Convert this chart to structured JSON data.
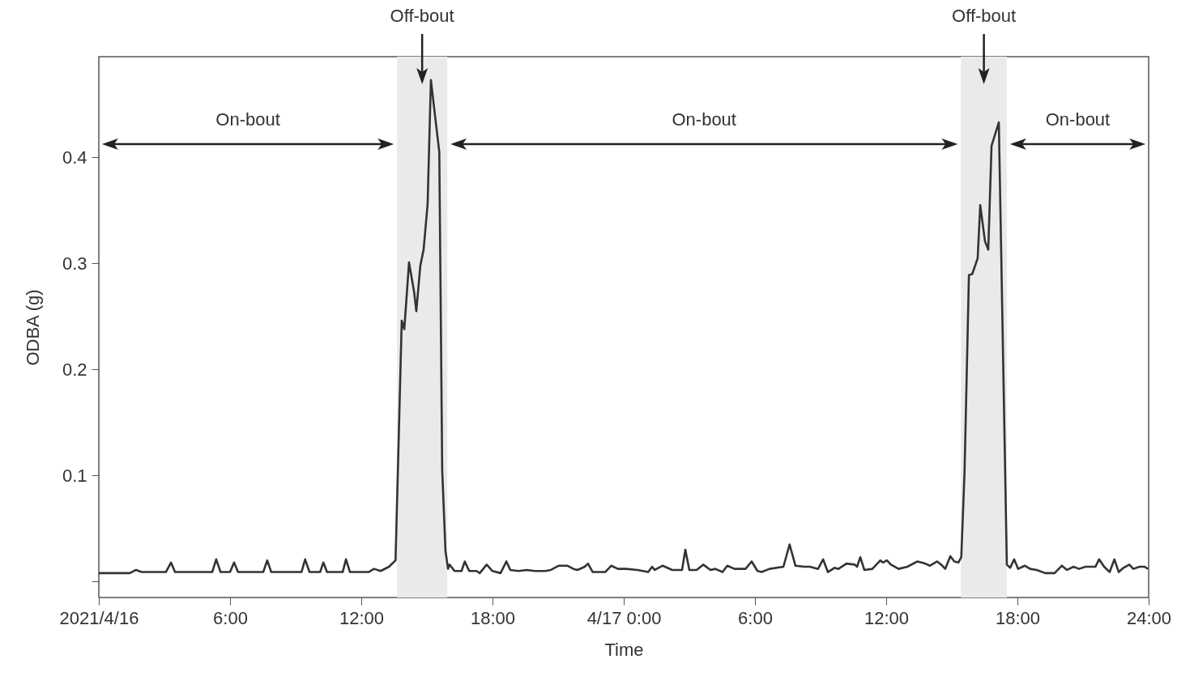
{
  "chart_data": {
    "type": "line",
    "xlabel": "Time",
    "ylabel": "ODBA (g)",
    "x": [
      "2021-04-16T00:00",
      "2021-04-16T01:25",
      "2021-04-16T01:42",
      "2021-04-16T01:58",
      "2021-04-16T03:04",
      "2021-04-16T03:18",
      "2021-04-16T03:29",
      "2021-04-16T05:11",
      "2021-04-16T05:22",
      "2021-04-16T05:34",
      "2021-04-16T06:00",
      "2021-04-16T06:11",
      "2021-04-16T06:22",
      "2021-04-16T07:31",
      "2021-04-16T07:42",
      "2021-04-16T07:53",
      "2021-04-16T09:16",
      "2021-04-16T09:26",
      "2021-04-16T09:38",
      "2021-04-16T10:07",
      "2021-04-16T10:16",
      "2021-04-16T10:26",
      "2021-04-16T11:09",
      "2021-04-16T11:18",
      "2021-04-16T11:29",
      "2021-04-16T12:20",
      "2021-04-16T12:35",
      "2021-04-16T12:53",
      "2021-04-16T13:16",
      "2021-04-16T13:34",
      "2021-04-16T13:51",
      "2021-04-16T13:58",
      "2021-04-16T14:11",
      "2021-04-16T14:25",
      "2021-04-16T14:31",
      "2021-04-16T14:42",
      "2021-04-16T14:51",
      "2021-04-16T15:02",
      "2021-04-16T15:11",
      "2021-04-16T15:34",
      "2021-04-16T15:42",
      "2021-04-16T15:51",
      "2021-04-16T15:58",
      "2021-04-16T16:02",
      "2021-04-16T16:16",
      "2021-04-16T16:35",
      "2021-04-16T16:44",
      "2021-04-16T16:56",
      "2021-04-16T17:16",
      "2021-04-16T17:25",
      "2021-04-16T17:44",
      "2021-04-16T18:00",
      "2021-04-16T18:22",
      "2021-04-16T18:38",
      "2021-04-16T18:49",
      "2021-04-16T19:11",
      "2021-04-16T19:34",
      "2021-04-16T19:56",
      "2021-04-16T20:25",
      "2021-04-16T20:40",
      "2021-04-16T21:02",
      "2021-04-16T21:25",
      "2021-04-16T21:42",
      "2021-04-16T21:53",
      "2021-04-16T22:13",
      "2021-04-16T22:22",
      "2021-04-16T22:35",
      "2021-04-16T23:09",
      "2021-04-16T23:26",
      "2021-04-16T23:44",
      "2021-04-17T00:07",
      "2021-04-17T00:38",
      "2021-04-17T01:07",
      "2021-04-17T01:18",
      "2021-04-17T01:25",
      "2021-04-17T01:47",
      "2021-04-17T02:13",
      "2021-04-17T02:40",
      "2021-04-17T02:49",
      "2021-04-17T03:00",
      "2021-04-17T03:20",
      "2021-04-17T03:38",
      "2021-04-17T03:58",
      "2021-04-17T04:11",
      "2021-04-17T04:31",
      "2021-04-17T04:44",
      "2021-04-17T05:04",
      "2021-04-17T05:34",
      "2021-04-17T05:51",
      "2021-04-17T06:07",
      "2021-04-17T06:18",
      "2021-04-17T06:40",
      "2021-04-17T07:18",
      "2021-04-17T07:35",
      "2021-04-17T07:51",
      "2021-04-17T08:16",
      "2021-04-17T08:31",
      "2021-04-17T08:53",
      "2021-04-17T09:07",
      "2021-04-17T09:20",
      "2021-04-17T09:38",
      "2021-04-17T09:49",
      "2021-04-17T10:11",
      "2021-04-17T10:34",
      "2021-04-17T10:40",
      "2021-04-17T10:49",
      "2021-04-17T11:00",
      "2021-04-17T11:22",
      "2021-04-17T11:44",
      "2021-04-17T11:51",
      "2021-04-17T12:02",
      "2021-04-17T12:13",
      "2021-04-17T12:34",
      "2021-04-17T12:58",
      "2021-04-17T13:26",
      "2021-04-17T13:47",
      "2021-04-17T14:00",
      "2021-04-17T14:20",
      "2021-04-17T14:31",
      "2021-04-17T14:42",
      "2021-04-17T14:56",
      "2021-04-17T15:07",
      "2021-04-17T15:18",
      "2021-04-17T15:26",
      "2021-04-17T15:35",
      "2021-04-17T15:47",
      "2021-04-17T15:56",
      "2021-04-17T16:11",
      "2021-04-17T16:18",
      "2021-04-17T16:31",
      "2021-04-17T16:40",
      "2021-04-17T16:49",
      "2021-04-17T17:09",
      "2021-04-17T17:31",
      "2021-04-17T17:40",
      "2021-04-17T17:51",
      "2021-04-17T18:02",
      "2021-04-17T18:20",
      "2021-04-17T18:35",
      "2021-04-17T18:53",
      "2021-04-17T19:16",
      "2021-04-17T19:42",
      "2021-04-17T20:02",
      "2021-04-17T20:16",
      "2021-04-17T20:34",
      "2021-04-17T20:49",
      "2021-04-17T21:07",
      "2021-04-17T21:34",
      "2021-04-17T21:44",
      "2021-04-17T21:58",
      "2021-04-17T22:13",
      "2021-04-17T22:26",
      "2021-04-17T22:38",
      "2021-04-17T22:51",
      "2021-04-17T23:07",
      "2021-04-17T23:18",
      "2021-04-17T23:35",
      "2021-04-17T23:49",
      "2021-04-17T23:58"
    ],
    "series": [
      {
        "color": "#333333",
        "values": [
          0.008,
          0.008,
          0.011,
          0.009,
          0.009,
          0.018,
          0.009,
          0.009,
          0.021,
          0.009,
          0.009,
          0.018,
          0.009,
          0.009,
          0.02,
          0.009,
          0.009,
          0.021,
          0.009,
          0.009,
          0.018,
          0.009,
          0.009,
          0.021,
          0.009,
          0.009,
          0.012,
          0.01,
          0.014,
          0.02,
          0.246,
          0.238,
          0.301,
          0.273,
          0.255,
          0.298,
          0.313,
          0.356,
          0.473,
          0.405,
          0.105,
          0.029,
          0.012,
          0.016,
          0.01,
          0.01,
          0.019,
          0.01,
          0.01,
          0.008,
          0.016,
          0.01,
          0.008,
          0.019,
          0.011,
          0.01,
          0.011,
          0.01,
          0.01,
          0.011,
          0.015,
          0.015,
          0.012,
          0.011,
          0.014,
          0.017,
          0.009,
          0.009,
          0.015,
          0.012,
          0.012,
          0.011,
          0.009,
          0.014,
          0.011,
          0.015,
          0.011,
          0.011,
          0.03,
          0.011,
          0.011,
          0.016,
          0.011,
          0.012,
          0.009,
          0.015,
          0.012,
          0.012,
          0.019,
          0.01,
          0.009,
          0.012,
          0.014,
          0.035,
          0.015,
          0.014,
          0.014,
          0.012,
          0.021,
          0.009,
          0.013,
          0.012,
          0.017,
          0.016,
          0.014,
          0.023,
          0.011,
          0.012,
          0.02,
          0.018,
          0.02,
          0.016,
          0.012,
          0.014,
          0.019,
          0.017,
          0.015,
          0.019,
          0.016,
          0.012,
          0.024,
          0.019,
          0.018,
          0.023,
          0.104,
          0.289,
          0.29,
          0.305,
          0.355,
          0.321,
          0.313,
          0.411,
          0.433,
          0.016,
          0.013,
          0.021,
          0.012,
          0.015,
          0.012,
          0.011,
          0.008,
          0.008,
          0.015,
          0.011,
          0.014,
          0.012,
          0.014,
          0.014,
          0.021,
          0.014,
          0.009,
          0.021,
          0.009,
          0.013,
          0.016,
          0.012,
          0.014,
          0.014,
          0.012
        ]
      }
    ],
    "xlim": [
      "2021-04-16T00:00",
      "2021-04-18T00:00"
    ],
    "xticks": [
      {
        "value": "2021-04-16T00:00",
        "label": "2021/4/16"
      },
      {
        "value": "2021-04-16T06:00",
        "label": "6:00"
      },
      {
        "value": "2021-04-16T12:00",
        "label": "12:00"
      },
      {
        "value": "2021-04-16T18:00",
        "label": "18:00"
      },
      {
        "value": "2021-04-17T00:00",
        "label": "4/17 0:00"
      },
      {
        "value": "2021-04-17T06:00",
        "label": "6:00"
      },
      {
        "value": "2021-04-17T12:00",
        "label": "12:00"
      },
      {
        "value": "2021-04-17T18:00",
        "label": "18:00"
      },
      {
        "value": "2021-04-18T00:00",
        "label": "24:00"
      }
    ],
    "ylim": [
      -0.015,
      0.495
    ],
    "yticks": [
      {
        "value": 0,
        "label": null
      },
      0.1,
      0.2,
      0.3,
      0.4
    ],
    "bands": [
      {
        "axis": "x",
        "from": "2021-04-16T13:38",
        "to": "2021-04-16T15:56",
        "label": "Off-bout",
        "color": "#e9eaeb"
      },
      {
        "axis": "x",
        "from": "2021-04-17T15:25",
        "to": "2021-04-17T17:31",
        "label": "Off-bout",
        "color": "#e9eaeb"
      }
    ],
    "annotations": [
      "On-bout",
      "On-bout",
      "On-bout"
    ],
    "grid": false,
    "marker": "none",
    "line_style": "solid"
  }
}
